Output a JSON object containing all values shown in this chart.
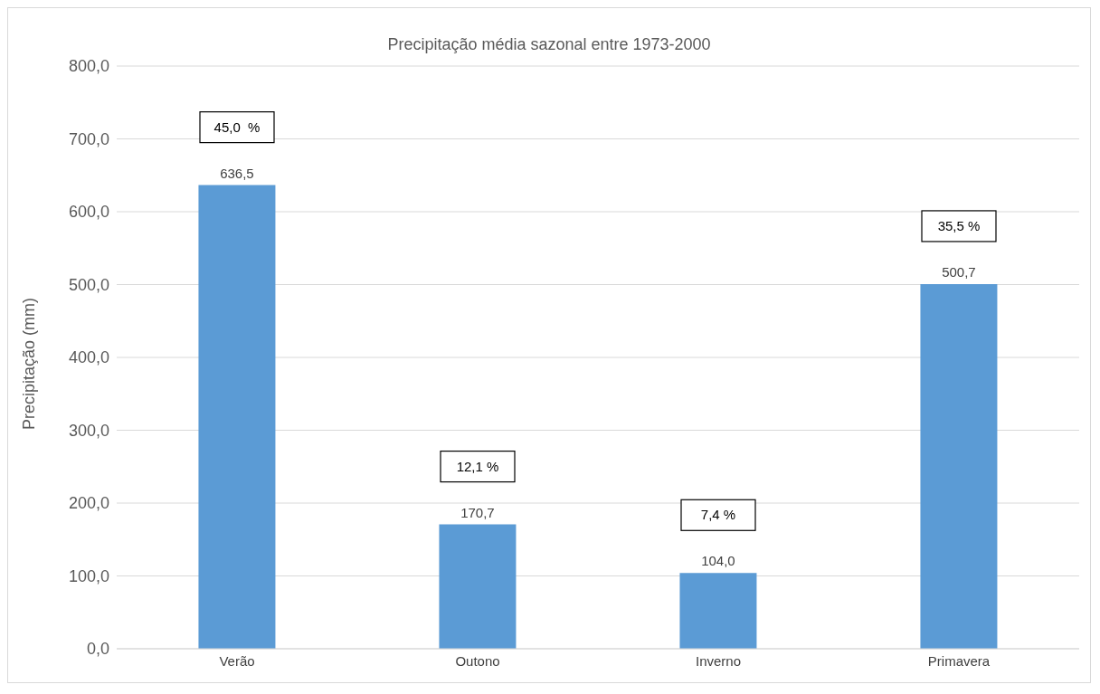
{
  "chart_data": {
    "type": "bar",
    "title": "Precipitação média sazonal entre 1973-2000",
    "ylabel": "Precipitação (mm)",
    "categories": [
      "Verão",
      "Outono",
      "Inverno",
      "Primavera"
    ],
    "values": [
      636.5,
      170.7,
      104.0,
      500.7
    ],
    "color": "#5b9bd5",
    "value_labels": [
      "636,5",
      "170,7",
      "104,0",
      "500,7"
    ],
    "ylim": [
      0,
      800
    ],
    "yticks": [
      {
        "value": 0,
        "label": "0,0"
      },
      {
        "value": 100,
        "label": "100,0"
      },
      {
        "value": 200,
        "label": "200,0"
      },
      {
        "value": 300,
        "label": "300,0"
      },
      {
        "value": 400,
        "label": "400,0"
      },
      {
        "value": 500,
        "label": "500,0"
      },
      {
        "value": 600,
        "label": "600,0"
      },
      {
        "value": 700,
        "label": "700,0"
      },
      {
        "value": 800,
        "label": "800,0"
      }
    ],
    "grid": "y",
    "annotations": [
      "45,0  %",
      "12,1 %",
      "7,4 %",
      "35,5 %"
    ]
  }
}
